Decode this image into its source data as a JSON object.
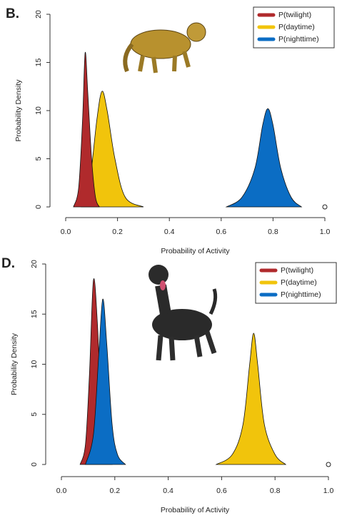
{
  "chart_data": [
    {
      "type": "density",
      "panel_label": "B.",
      "xlabel": "Probability of Activity",
      "ylabel": "Probability Density",
      "xlim": [
        0,
        1
      ],
      "ylim": [
        0,
        20
      ],
      "xticks": [
        {
          "value": 0,
          "label": "0.0"
        },
        0.2,
        0.4,
        0.6,
        0.8,
        {
          "value": 1,
          "label": "1.0"
        }
      ],
      "yticks": [
        0,
        5,
        10,
        15,
        20
      ],
      "legend": "top-right",
      "series": [
        {
          "name": "P(twilight)",
          "color": "#b02a2c",
          "x": [
            0.03,
            0.05,
            0.065,
            0.075,
            0.085,
            0.1,
            0.115,
            0.13
          ],
          "values": [
            0,
            2,
            9,
            16,
            12,
            5,
            1,
            0
          ]
        },
        {
          "name": "P(daytime)",
          "color": "#f1c40c",
          "x": [
            0.06,
            0.09,
            0.12,
            0.14,
            0.16,
            0.19,
            0.23,
            0.3
          ],
          "values": [
            0,
            2,
            9,
            12,
            10,
            5,
            1,
            0
          ]
        },
        {
          "name": "P(nighttime)",
          "color": "#0b6dc4",
          "x": [
            0.62,
            0.68,
            0.73,
            0.76,
            0.78,
            0.8,
            0.83,
            0.87,
            0.91
          ],
          "values": [
            0,
            1,
            4,
            8.5,
            10.2,
            8.5,
            4,
            1,
            0
          ]
        }
      ],
      "points": {
        "x": [
          1
        ],
        "values": [
          0
        ]
      }
    },
    {
      "type": "density",
      "panel_label": "D.",
      "xlabel": "Probability of Activity",
      "ylabel": "Probability Density",
      "xlim": [
        0,
        1
      ],
      "ylim": [
        0,
        20
      ],
      "xticks": [
        {
          "value": 0,
          "label": "0.0"
        },
        0.2,
        0.4,
        0.6,
        0.8,
        {
          "value": 1,
          "label": "1.0"
        }
      ],
      "yticks": [
        0,
        5,
        10,
        15,
        20
      ],
      "legend": "top-right",
      "series": [
        {
          "name": "P(twilight)",
          "color": "#b02a2c",
          "x": [
            0.07,
            0.09,
            0.105,
            0.12,
            0.135,
            0.15,
            0.17,
            0.19
          ],
          "values": [
            0,
            2,
            9,
            18.4,
            14,
            5,
            1,
            0
          ]
        },
        {
          "name": "P(daytime)",
          "color": "#f1c40c",
          "x": [
            0.58,
            0.64,
            0.68,
            0.705,
            0.72,
            0.735,
            0.76,
            0.8,
            0.84
          ],
          "values": [
            0,
            1,
            4,
            10,
            13.1,
            10,
            4,
            1,
            0
          ]
        },
        {
          "name": "P(nighttime)",
          "color": "#0b6dc4",
          "x": [
            0.09,
            0.12,
            0.14,
            0.155,
            0.17,
            0.19,
            0.21,
            0.24
          ],
          "values": [
            0,
            3,
            11,
            16.5,
            12,
            4,
            1,
            0
          ]
        }
      ],
      "points": {
        "x": [
          1
        ],
        "values": [
          0
        ]
      }
    }
  ]
}
